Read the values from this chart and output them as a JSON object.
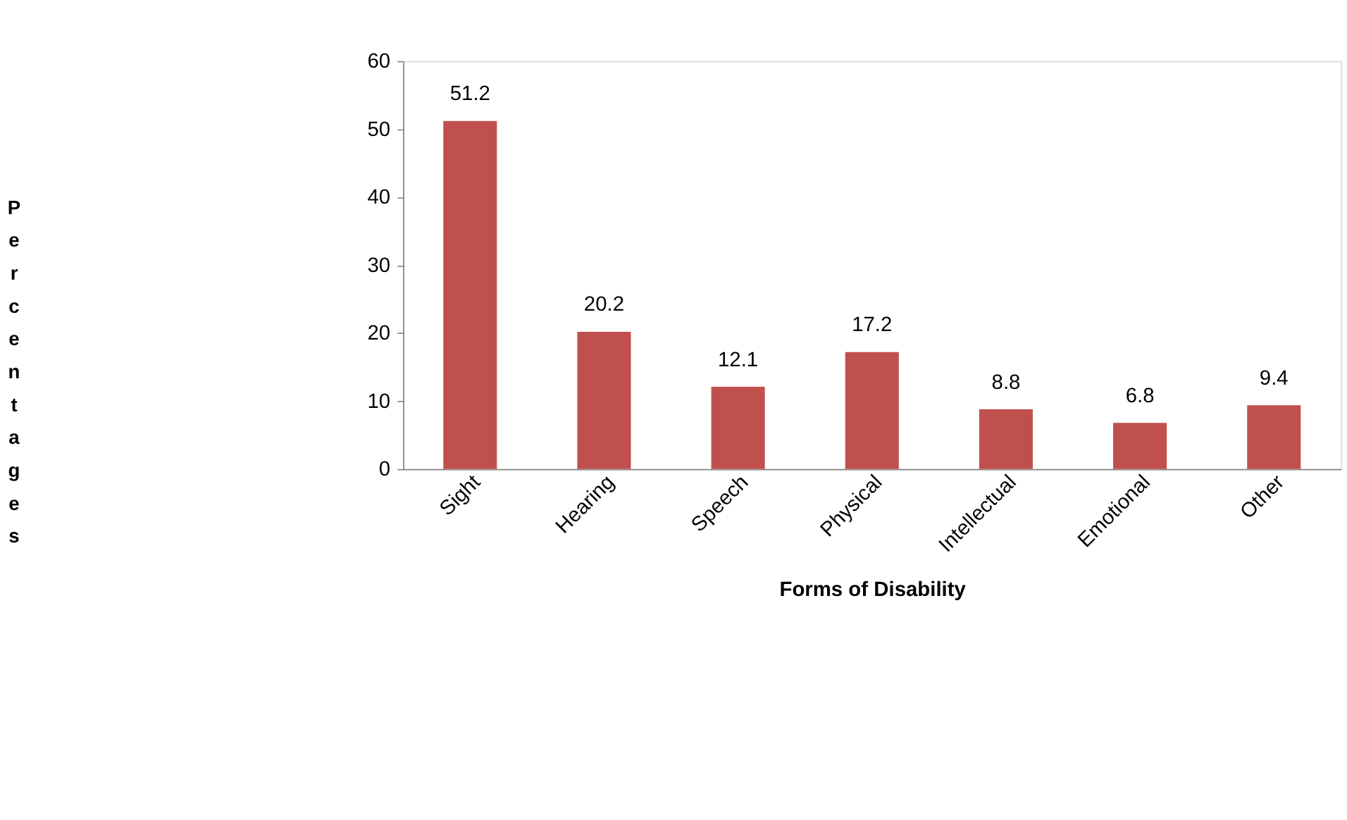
{
  "chart_data": {
    "type": "bar",
    "xlabel": "Forms of Disability",
    "ylabel": "Percentages",
    "categories": [
      "Sight",
      "Hearing",
      "Speech",
      "Physical",
      "Intellectual",
      "Emotional",
      "Other"
    ],
    "values": [
      51.2,
      20.2,
      12.1,
      17.2,
      8.8,
      6.8,
      9.4
    ],
    "color": "#c0504d",
    "ylim": [
      0,
      60
    ],
    "yticks": [
      0,
      10,
      20,
      30,
      40,
      50,
      60
    ],
    "grid": false,
    "data_labels": true
  }
}
